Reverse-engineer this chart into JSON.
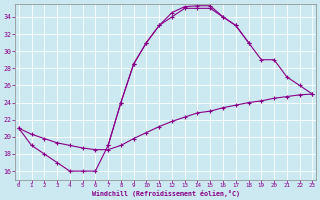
{
  "xlabel": "Windchill (Refroidissement éolien,°C)",
  "bg_color": "#cce8f0",
  "grid_color": "#ffffff",
  "line_color": "#880088",
  "xlim_min": 0,
  "xlim_max": 23,
  "ylim_min": 15,
  "ylim_max": 35.5,
  "yticks": [
    16,
    18,
    20,
    22,
    24,
    26,
    28,
    30,
    32,
    34
  ],
  "c1x": [
    0,
    1,
    2,
    3,
    4,
    5,
    6,
    7,
    8,
    9,
    10,
    11,
    12,
    13,
    14,
    15,
    16,
    17,
    18
  ],
  "c1y": [
    21,
    19,
    18,
    17,
    16,
    16,
    16,
    19,
    24,
    28.5,
    31,
    33,
    34,
    35,
    35,
    35,
    34,
    33,
    31
  ],
  "c2x": [
    7,
    8,
    9,
    10,
    11,
    12,
    13,
    14,
    15,
    16,
    17,
    18,
    19,
    20,
    21,
    22,
    23
  ],
  "c2y": [
    19,
    24,
    28.5,
    31,
    33,
    34.5,
    35.2,
    35.3,
    35.3,
    34,
    33,
    31,
    29,
    29,
    27,
    26,
    25
  ],
  "c3x": [
    0,
    1,
    2,
    3,
    4,
    5,
    6,
    7,
    8,
    9,
    10,
    11,
    12,
    13,
    14,
    15,
    16,
    17,
    18,
    19,
    20,
    21,
    22,
    23
  ],
  "c3y": [
    21,
    20.3,
    19.8,
    19.3,
    19.0,
    18.7,
    18.5,
    18.5,
    19.0,
    19.8,
    20.5,
    21.2,
    21.8,
    22.3,
    22.8,
    23.0,
    23.4,
    23.7,
    24.0,
    24.2,
    24.5,
    24.7,
    24.9,
    25.0
  ],
  "marker": "+",
  "markersize": 3,
  "linewidth": 0.8
}
